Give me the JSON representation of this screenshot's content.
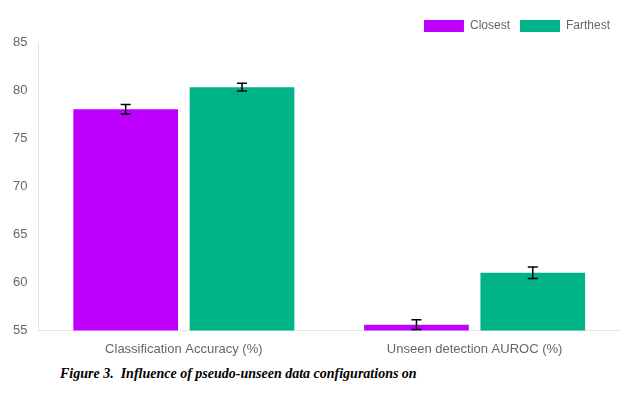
{
  "chart_data": {
    "type": "bar",
    "categories": [
      "Classification Accuracy (%)",
      "Unseen detection AUROC (%)"
    ],
    "series": [
      {
        "name": "Closest",
        "color": "#be00ff",
        "values": [
          78.0,
          55.6
        ],
        "errors": [
          0.5,
          0.5
        ]
      },
      {
        "name": "Farthest",
        "color": "#00b388",
        "values": [
          80.3,
          61.0
        ],
        "errors": [
          0.4,
          0.6
        ]
      }
    ],
    "ylim": [
      55,
      85
    ],
    "yticks": [
      55,
      60,
      65,
      70,
      75,
      80,
      85
    ],
    "grid": false,
    "legend": "upper right",
    "annotations": [
      "Figure 3.  Influence of pseudo-unseen data configurations on"
    ]
  }
}
